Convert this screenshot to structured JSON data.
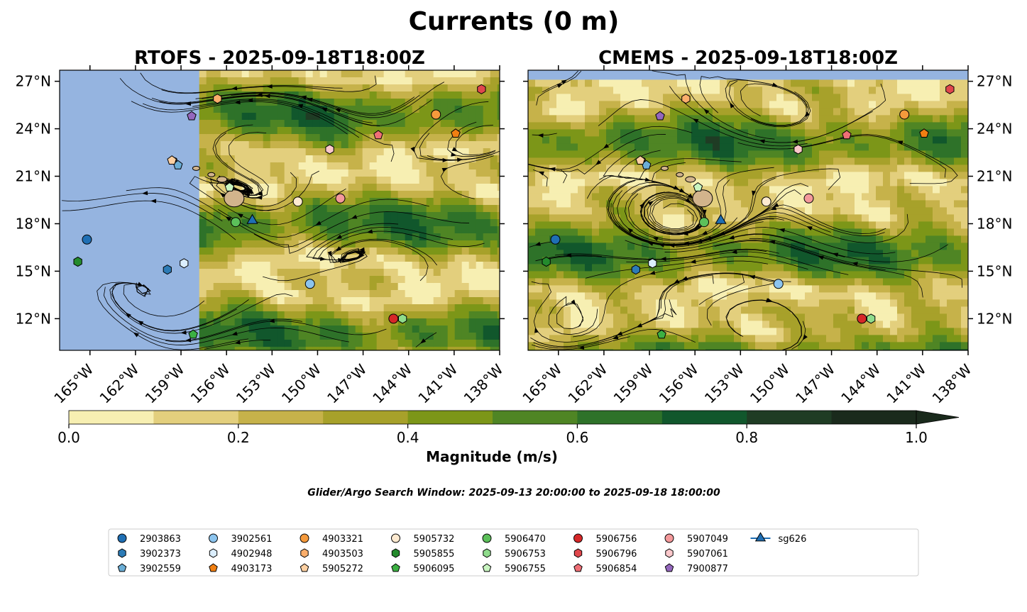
{
  "figure": {
    "title": "Currents (0 m)",
    "search_window": "Glider/Argo Search Window: 2025-09-13 20:00:00 to 2025-09-18 18:00:00"
  },
  "chart_data": [
    {
      "type": "streamplot-map",
      "title": "RTOFS - 2025-09-18T18:00Z",
      "model": "RTOFS",
      "valid_time": "2025-09-18T18:00Z",
      "lon_range": [
        -167,
        -138
      ],
      "lat_range": [
        10,
        27.7
      ],
      "lat_ticks": [
        "12°N",
        "15°N",
        "18°N",
        "21°N",
        "24°N",
        "27°N"
      ],
      "lat_tick_values": [
        12,
        15,
        18,
        21,
        24,
        27
      ],
      "lon_ticks": [
        "165°W",
        "162°W",
        "159°W",
        "156°W",
        "153°W",
        "150°W",
        "147°W",
        "144°W",
        "141°W",
        "138°W"
      ],
      "lon_tick_values": [
        -165,
        -162,
        -159,
        -156,
        -153,
        -150,
        -147,
        -144,
        -141,
        -138
      ],
      "model_domain_west_lon": -157.8,
      "lat_labels_side": "left"
    },
    {
      "type": "streamplot-map",
      "title": "CMEMS - 2025-09-18T18:00Z",
      "model": "CMEMS",
      "valid_time": "2025-09-18T18:00Z",
      "lon_range": [
        -167,
        -138
      ],
      "lat_range": [
        10,
        27.7
      ],
      "lat_ticks": [
        "12°N",
        "15°N",
        "18°N",
        "21°N",
        "24°N",
        "27°N"
      ],
      "lat_tick_values": [
        12,
        15,
        18,
        21,
        24,
        27
      ],
      "lon_ticks": [
        "165°W",
        "162°W",
        "159°W",
        "156°W",
        "153°W",
        "150°W",
        "147°W",
        "144°W",
        "141°W",
        "138°W"
      ],
      "lon_tick_values": [
        -165,
        -162,
        -159,
        -156,
        -153,
        -150,
        -147,
        -144,
        -141,
        -138
      ],
      "model_domain_north_lat": 27.1,
      "lat_labels_side": "right"
    }
  ],
  "colorbar": {
    "label": "Magnitude (m/s)",
    "ticks": [
      "0.0",
      "0.2",
      "0.4",
      "0.6",
      "0.8",
      "1.0"
    ],
    "tick_values": [
      0,
      0.2,
      0.4,
      0.6,
      0.8,
      1.0
    ],
    "range": [
      0,
      1.0
    ],
    "extend": "max",
    "levels": [
      {
        "from": 0.0,
        "to": 0.1,
        "color": "#f7efb2"
      },
      {
        "from": 0.1,
        "to": 0.2,
        "color": "#e3cf7d"
      },
      {
        "from": 0.2,
        "to": 0.3,
        "color": "#c6b24a"
      },
      {
        "from": 0.3,
        "to": 0.4,
        "color": "#a7a12a"
      },
      {
        "from": 0.4,
        "to": 0.5,
        "color": "#7c9618"
      },
      {
        "from": 0.5,
        "to": 0.6,
        "color": "#4f8524"
      },
      {
        "from": 0.6,
        "to": 0.7,
        "color": "#2e7229"
      },
      {
        "from": 0.7,
        "to": 0.8,
        "color": "#11572c"
      },
      {
        "from": 0.8,
        "to": 0.9,
        "color": "#1f3c24"
      },
      {
        "from": 0.9,
        "to": 1.0,
        "color": "#1a2a1c"
      }
    ]
  },
  "platforms": [
    {
      "id": "2903863",
      "marker": "circle",
      "color": "#1f6fb4",
      "lon": -165.2,
      "lat": 17.0
    },
    {
      "id": "3902373",
      "marker": "hexagon",
      "color": "#2c7bb6",
      "lon": -159.9,
      "lat": 15.1
    },
    {
      "id": "3902559",
      "marker": "pentagon",
      "color": "#6baed6",
      "lon": -159.2,
      "lat": 21.7
    },
    {
      "id": "3902561",
      "marker": "circle",
      "color": "#8cc4ee",
      "lon": -150.5,
      "lat": 14.2
    },
    {
      "id": "4902948",
      "marker": "hexagon",
      "color": "#dbeefe",
      "lon": -158.8,
      "lat": 15.5
    },
    {
      "id": "4903173",
      "marker": "pentagon",
      "color": "#f07f12",
      "lon": -140.9,
      "lat": 23.7
    },
    {
      "id": "4903321",
      "marker": "circle",
      "color": "#f59a3c",
      "lon": -142.2,
      "lat": 24.9
    },
    {
      "id": "4903503",
      "marker": "hexagon",
      "color": "#fbae6b",
      "lon": -156.6,
      "lat": 25.9
    },
    {
      "id": "5905272",
      "marker": "pentagon",
      "color": "#fdd0a2",
      "lon": -159.6,
      "lat": 22.0
    },
    {
      "id": "5905732",
      "marker": "circle",
      "color": "#feead0",
      "lon": -151.3,
      "lat": 19.4
    },
    {
      "id": "5905855",
      "marker": "hexagon",
      "color": "#248b2d",
      "lon": -165.8,
      "lat": 15.6
    },
    {
      "id": "5906095",
      "marker": "pentagon",
      "color": "#3cb043",
      "lon": -158.2,
      "lat": 11.0
    },
    {
      "id": "5906470",
      "marker": "circle",
      "color": "#5cc05a",
      "lon": -155.4,
      "lat": 18.1
    },
    {
      "id": "5906753",
      "marker": "hexagon",
      "color": "#8fdc8c",
      "lon": -144.4,
      "lat": 12.0
    },
    {
      "id": "5906755",
      "marker": "pentagon",
      "color": "#c9f5c1",
      "lon": -155.8,
      "lat": 20.3
    },
    {
      "id": "5906756",
      "marker": "circle",
      "color": "#d62728",
      "lon": -145.0,
      "lat": 12.0
    },
    {
      "id": "5906796",
      "marker": "hexagon",
      "color": "#e0474c",
      "lon": -139.2,
      "lat": 26.5
    },
    {
      "id": "5906854",
      "marker": "pentagon",
      "color": "#ef6f76",
      "lon": -146.0,
      "lat": 23.6
    },
    {
      "id": "5907049",
      "marker": "circle",
      "color": "#f4999b",
      "lon": -148.5,
      "lat": 19.6
    },
    {
      "id": "5907061",
      "marker": "hexagon",
      "color": "#fbc8cb",
      "lon": -149.2,
      "lat": 22.7
    },
    {
      "id": "7900877",
      "marker": "pentagon",
      "color": "#9467bd",
      "lon": -158.3,
      "lat": 24.8
    },
    {
      "id": "sg626",
      "marker": "triangle",
      "color": "#1f6fb4",
      "lon": -154.3,
      "lat": 18.2
    }
  ]
}
